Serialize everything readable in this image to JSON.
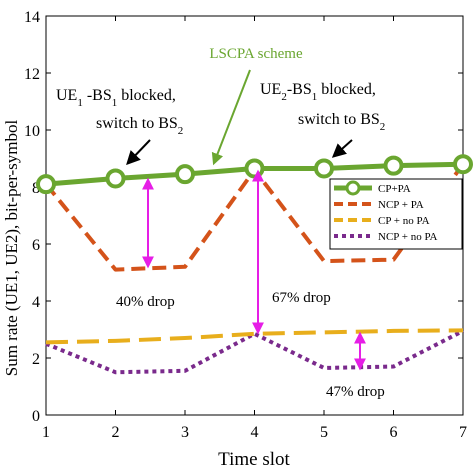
{
  "chart_data": {
    "type": "line",
    "xlabel": "Time slot",
    "ylabel": "Sum rate (UE1, UE2), bit-per-symbol",
    "x": [
      1,
      2,
      3,
      4,
      5,
      6,
      7
    ],
    "xlim": [
      1,
      7
    ],
    "ylim": [
      0,
      14
    ],
    "xticks": [
      "1",
      "2",
      "3",
      "4",
      "5",
      "6",
      "7"
    ],
    "yticks": [
      "0",
      "2",
      "4",
      "6",
      "8",
      "10",
      "12",
      "14"
    ],
    "grid": false,
    "legend_position": "right",
    "series": [
      {
        "name": "CP+PA",
        "color": "#6aa630",
        "style": "solid-marker",
        "values": [
          8.1,
          8.3,
          8.45,
          8.65,
          8.65,
          8.75,
          8.8
        ]
      },
      {
        "name": "NCP + PA",
        "color": "#d4531a",
        "style": "dash",
        "values": [
          8.1,
          5.1,
          5.2,
          8.6,
          5.4,
          5.45,
          8.8
        ]
      },
      {
        "name": "CP + no PA",
        "color": "#e8ae1c",
        "style": "longdash",
        "values": [
          2.55,
          2.6,
          2.7,
          2.85,
          2.9,
          2.95,
          2.97
        ]
      },
      {
        "name": "NCP + no PA",
        "color": "#7a2a8c",
        "style": "dot",
        "values": [
          2.5,
          1.5,
          1.55,
          2.85,
          1.65,
          1.7,
          2.95
        ]
      }
    ],
    "annotations": {
      "scheme_label": "LSCPA scheme",
      "blocked1_line1": "UE",
      "blocked1_sub1": "1",
      "blocked1_mid": " -BS",
      "blocked1_sub2": "1",
      "blocked1_end": "  blocked,",
      "blocked1_line2": "switch to BS",
      "blocked1_sub3": "2",
      "blocked2_line1": "UE",
      "blocked2_sub1": "2",
      "blocked2_mid": "-BS",
      "blocked2_sub2": "1",
      "blocked2_end": " blocked,",
      "blocked2_line2": "switch to BS",
      "blocked2_sub3": "2",
      "drop1": "40% drop",
      "drop2": "67% drop",
      "drop3": "47% drop"
    },
    "colors": {
      "arrow_magenta": "#e61ee6",
      "arrow_black": "#000000",
      "scheme_arrow": "#6aa630"
    }
  }
}
